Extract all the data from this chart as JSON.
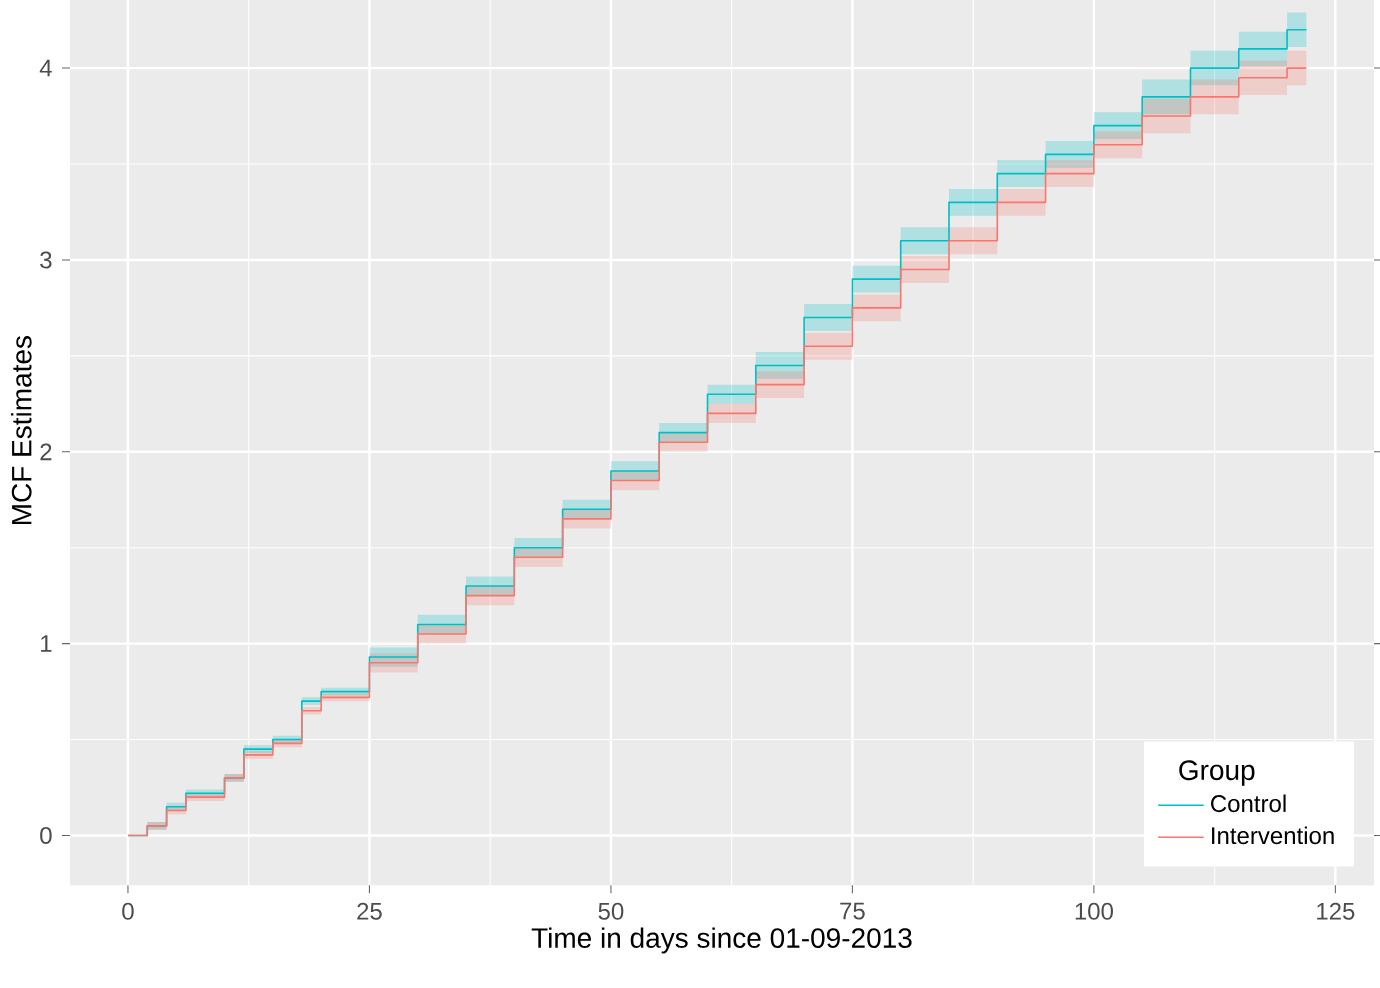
{
  "chart_data": {
    "type": "step",
    "xlabel": "Time in days since 01-09-2013",
    "ylabel": "MCF Estimates",
    "legend_title": "Group",
    "xlim": [
      -6,
      129
    ],
    "ylim": [
      -0.26,
      4.48
    ],
    "xticks": [
      0,
      25,
      50,
      75,
      100,
      125
    ],
    "yticks": [
      0,
      1,
      2,
      3,
      4
    ],
    "grid": true,
    "legend": "bottom right",
    "x": [
      0,
      2,
      4,
      6,
      10,
      12,
      15,
      18,
      20,
      25,
      30,
      35,
      40,
      45,
      50,
      55,
      60,
      65,
      70,
      75,
      80,
      85,
      90,
      95,
      100,
      105,
      110,
      115,
      120,
      122
    ],
    "series": [
      {
        "name": "Control",
        "color": "#00bfc4",
        "values": [
          0,
          0.05,
          0.15,
          0.22,
          0.3,
          0.45,
          0.5,
          0.7,
          0.75,
          0.93,
          1.1,
          1.3,
          1.5,
          1.7,
          1.9,
          2.1,
          2.3,
          2.45,
          2.7,
          2.9,
          3.1,
          3.3,
          3.45,
          3.55,
          3.7,
          3.85,
          4.0,
          4.1,
          4.2,
          4.2
        ],
        "lower": [
          0,
          0.03,
          0.13,
          0.2,
          0.28,
          0.43,
          0.48,
          0.68,
          0.73,
          0.88,
          1.05,
          1.25,
          1.45,
          1.65,
          1.85,
          2.05,
          2.25,
          2.38,
          2.63,
          2.83,
          3.03,
          3.23,
          3.38,
          3.48,
          3.63,
          3.76,
          3.91,
          4.01,
          4.11,
          4.11
        ],
        "upper": [
          0,
          0.07,
          0.17,
          0.24,
          0.32,
          0.47,
          0.52,
          0.72,
          0.77,
          0.98,
          1.15,
          1.35,
          1.55,
          1.75,
          1.95,
          2.15,
          2.35,
          2.52,
          2.77,
          2.97,
          3.17,
          3.37,
          3.52,
          3.62,
          3.77,
          3.94,
          4.09,
          4.19,
          4.29,
          4.29
        ]
      },
      {
        "name": "Intervention",
        "color": "#f8766d",
        "values": [
          0,
          0.05,
          0.13,
          0.2,
          0.3,
          0.42,
          0.48,
          0.65,
          0.72,
          0.9,
          1.05,
          1.25,
          1.45,
          1.65,
          1.85,
          2.05,
          2.2,
          2.35,
          2.55,
          2.75,
          2.95,
          3.1,
          3.3,
          3.45,
          3.6,
          3.75,
          3.85,
          3.95,
          4.0,
          4.0
        ],
        "lower": [
          0,
          0.03,
          0.11,
          0.18,
          0.28,
          0.4,
          0.46,
          0.63,
          0.7,
          0.85,
          1.0,
          1.2,
          1.4,
          1.6,
          1.8,
          2.0,
          2.15,
          2.28,
          2.48,
          2.68,
          2.88,
          3.03,
          3.23,
          3.38,
          3.53,
          3.66,
          3.76,
          3.86,
          3.91,
          3.91
        ],
        "upper": [
          0,
          0.07,
          0.15,
          0.22,
          0.32,
          0.44,
          0.5,
          0.67,
          0.74,
          0.95,
          1.1,
          1.3,
          1.5,
          1.7,
          1.9,
          2.1,
          2.25,
          2.42,
          2.62,
          2.82,
          3.02,
          3.17,
          3.37,
          3.52,
          3.67,
          3.84,
          3.94,
          4.04,
          4.09,
          4.09
        ]
      }
    ]
  }
}
